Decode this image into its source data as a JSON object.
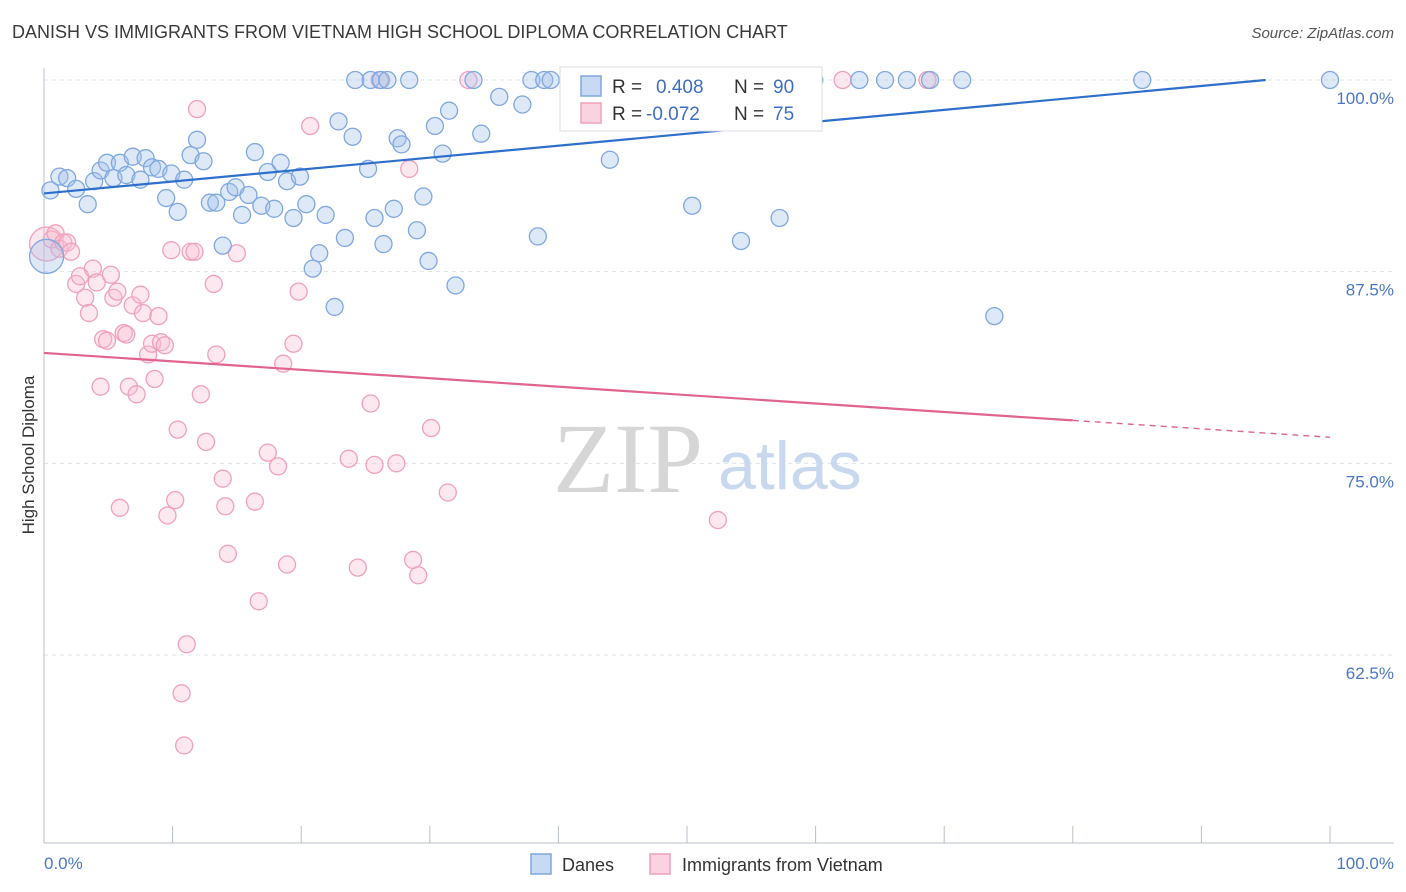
{
  "title": "DANISH VS IMMIGRANTS FROM VIETNAM HIGH SCHOOL DIPLOMA CORRELATION CHART",
  "source": "Source: ZipAtlas.com",
  "watermark": {
    "zip": "ZIP",
    "atlas": "atlas"
  },
  "colors": {
    "danes": "#7fa8e0",
    "danes_line": "#2f6fcc",
    "vietnam": "#f0a0bc",
    "vietnam_line": "#e0648c",
    "grid": "#dde3ec",
    "value_text": "#3e6fc4"
  },
  "stats": {
    "danes": {
      "r_label": "R =",
      "r_value": "0.408",
      "n_label": "N =",
      "n_value": "90"
    },
    "vietnam": {
      "r_label": "R =",
      "r_value": "-0.072",
      "n_label": "N =",
      "n_value": "75"
    }
  },
  "chart_data": {
    "type": "scatter",
    "title": "DANISH VS IMMIGRANTS FROM VIETNAM HIGH SCHOOL DIPLOMA CORRELATION CHART",
    "xlabel": "",
    "ylabel": "High School Diploma",
    "xlim": [
      0,
      100
    ],
    "ylim": [
      51,
      101.5
    ],
    "x_tick_labels": [
      "0.0%",
      "100.0%"
    ],
    "y_ticks": [
      62.5,
      75.0,
      87.5,
      100.0
    ],
    "y_tick_labels": [
      "62.5%",
      "75.0%",
      "87.5%",
      "100.0%"
    ],
    "grid": true,
    "legend_position": "bottom-center",
    "series": [
      {
        "name": "Danes",
        "trend": {
          "x": [
            0,
            95
          ],
          "y": [
            92.6,
            100.0
          ]
        },
        "points": [
          {
            "x": 0.2,
            "y": 88.5,
            "big": true
          },
          {
            "x": 0.5,
            "y": 92.8
          },
          {
            "x": 1.2,
            "y": 93.7
          },
          {
            "x": 1.8,
            "y": 93.6
          },
          {
            "x": 2.5,
            "y": 92.9
          },
          {
            "x": 3.4,
            "y": 91.9
          },
          {
            "x": 3.9,
            "y": 93.4
          },
          {
            "x": 4.4,
            "y": 94.1
          },
          {
            "x": 4.9,
            "y": 94.6
          },
          {
            "x": 5.4,
            "y": 93.6
          },
          {
            "x": 5.9,
            "y": 94.6
          },
          {
            "x": 6.4,
            "y": 93.8
          },
          {
            "x": 6.9,
            "y": 95.0
          },
          {
            "x": 7.5,
            "y": 93.5
          },
          {
            "x": 7.9,
            "y": 94.9
          },
          {
            "x": 8.4,
            "y": 94.3
          },
          {
            "x": 8.9,
            "y": 94.2
          },
          {
            "x": 9.5,
            "y": 92.3
          },
          {
            "x": 9.9,
            "y": 93.9
          },
          {
            "x": 10.4,
            "y": 91.4
          },
          {
            "x": 10.9,
            "y": 93.5
          },
          {
            "x": 11.4,
            "y": 95.1
          },
          {
            "x": 11.9,
            "y": 96.1
          },
          {
            "x": 12.4,
            "y": 94.7
          },
          {
            "x": 12.9,
            "y": 92.0
          },
          {
            "x": 13.4,
            "y": 92.0
          },
          {
            "x": 13.9,
            "y": 89.2
          },
          {
            "x": 14.4,
            "y": 92.7
          },
          {
            "x": 14.9,
            "y": 93.0
          },
          {
            "x": 15.4,
            "y": 91.2
          },
          {
            "x": 15.9,
            "y": 92.5
          },
          {
            "x": 16.4,
            "y": 95.3
          },
          {
            "x": 16.9,
            "y": 91.8
          },
          {
            "x": 17.4,
            "y": 94.0
          },
          {
            "x": 17.9,
            "y": 91.6
          },
          {
            "x": 18.4,
            "y": 94.6
          },
          {
            "x": 18.9,
            "y": 93.4
          },
          {
            "x": 19.4,
            "y": 91.0
          },
          {
            "x": 19.9,
            "y": 93.7
          },
          {
            "x": 20.4,
            "y": 91.9
          },
          {
            "x": 20.9,
            "y": 87.7
          },
          {
            "x": 21.4,
            "y": 88.7
          },
          {
            "x": 21.9,
            "y": 91.2
          },
          {
            "x": 22.6,
            "y": 85.2
          },
          {
            "x": 22.9,
            "y": 97.3
          },
          {
            "x": 23.4,
            "y": 89.7
          },
          {
            "x": 24.0,
            "y": 96.3
          },
          {
            "x": 24.2,
            "y": 100.0
          },
          {
            "x": 25.2,
            "y": 94.2
          },
          {
            "x": 25.4,
            "y": 100.0
          },
          {
            "x": 25.7,
            "y": 91.0
          },
          {
            "x": 26.2,
            "y": 100.0
          },
          {
            "x": 26.4,
            "y": 89.3
          },
          {
            "x": 26.7,
            "y": 100.0
          },
          {
            "x": 27.2,
            "y": 91.6
          },
          {
            "x": 27.5,
            "y": 96.2
          },
          {
            "x": 27.8,
            "y": 95.8
          },
          {
            "x": 28.4,
            "y": 100.0
          },
          {
            "x": 29.0,
            "y": 90.2
          },
          {
            "x": 29.5,
            "y": 92.4
          },
          {
            "x": 29.9,
            "y": 88.2
          },
          {
            "x": 30.4,
            "y": 97.0
          },
          {
            "x": 31.0,
            "y": 95.2
          },
          {
            "x": 31.5,
            "y": 98.0
          },
          {
            "x": 32.0,
            "y": 86.6
          },
          {
            "x": 33.4,
            "y": 100.0
          },
          {
            "x": 34.0,
            "y": 96.5
          },
          {
            "x": 35.4,
            "y": 98.9
          },
          {
            "x": 37.2,
            "y": 98.4
          },
          {
            "x": 37.9,
            "y": 100.0
          },
          {
            "x": 38.4,
            "y": 89.8
          },
          {
            "x": 38.9,
            "y": 100.0
          },
          {
            "x": 39.4,
            "y": 100.0
          },
          {
            "x": 41.4,
            "y": 100.0
          },
          {
            "x": 43.4,
            "y": 100.0
          },
          {
            "x": 44.0,
            "y": 94.8
          },
          {
            "x": 47.4,
            "y": 100.0
          },
          {
            "x": 54.4,
            "y": 100.0
          },
          {
            "x": 55.4,
            "y": 100.0
          },
          {
            "x": 59.4,
            "y": 100.0
          },
          {
            "x": 59.9,
            "y": 100.0
          },
          {
            "x": 63.4,
            "y": 100.0
          },
          {
            "x": 65.4,
            "y": 100.0
          },
          {
            "x": 67.1,
            "y": 100.0
          },
          {
            "x": 68.9,
            "y": 100.0
          },
          {
            "x": 71.4,
            "y": 100.0
          },
          {
            "x": 85.4,
            "y": 100.0
          },
          {
            "x": 100.0,
            "y": 100.0
          },
          {
            "x": 50.4,
            "y": 91.8
          },
          {
            "x": 54.2,
            "y": 89.5
          },
          {
            "x": 57.2,
            "y": 91.0
          },
          {
            "x": 73.9,
            "y": 84.6
          }
        ]
      },
      {
        "name": "Immigrants from Vietnam",
        "trend": {
          "x": [
            0,
            80
          ],
          "y": [
            82.2,
            77.8
          ]
        },
        "trend_dashed": {
          "x": [
            80,
            100
          ],
          "y": [
            77.8,
            76.7
          ]
        },
        "points": [
          {
            "x": 0.2,
            "y": 89.3,
            "big": true
          },
          {
            "x": 0.6,
            "y": 89.6
          },
          {
            "x": 0.9,
            "y": 90.0
          },
          {
            "x": 1.2,
            "y": 89.0
          },
          {
            "x": 1.5,
            "y": 89.4
          },
          {
            "x": 1.8,
            "y": 89.4
          },
          {
            "x": 2.1,
            "y": 88.8
          },
          {
            "x": 2.5,
            "y": 86.7
          },
          {
            "x": 2.8,
            "y": 87.2
          },
          {
            "x": 3.2,
            "y": 85.8
          },
          {
            "x": 3.5,
            "y": 84.8
          },
          {
            "x": 3.8,
            "y": 87.7
          },
          {
            "x": 4.1,
            "y": 86.8
          },
          {
            "x": 4.4,
            "y": 80.0
          },
          {
            "x": 4.6,
            "y": 83.1
          },
          {
            "x": 4.9,
            "y": 83.0
          },
          {
            "x": 5.2,
            "y": 87.3
          },
          {
            "x": 5.4,
            "y": 85.8
          },
          {
            "x": 5.7,
            "y": 86.2
          },
          {
            "x": 5.9,
            "y": 72.1
          },
          {
            "x": 6.2,
            "y": 83.5
          },
          {
            "x": 6.4,
            "y": 83.4
          },
          {
            "x": 6.6,
            "y": 80.0
          },
          {
            "x": 6.9,
            "y": 85.3
          },
          {
            "x": 7.2,
            "y": 79.5
          },
          {
            "x": 7.5,
            "y": 86.0
          },
          {
            "x": 7.7,
            "y": 84.8
          },
          {
            "x": 8.1,
            "y": 82.1
          },
          {
            "x": 8.4,
            "y": 82.8
          },
          {
            "x": 8.6,
            "y": 80.5
          },
          {
            "x": 8.9,
            "y": 84.6
          },
          {
            "x": 9.1,
            "y": 82.9
          },
          {
            "x": 9.4,
            "y": 82.7
          },
          {
            "x": 9.6,
            "y": 71.6
          },
          {
            "x": 9.9,
            "y": 88.9
          },
          {
            "x": 10.2,
            "y": 72.6
          },
          {
            "x": 10.4,
            "y": 77.2
          },
          {
            "x": 10.7,
            "y": 60.0
          },
          {
            "x": 10.9,
            "y": 56.6
          },
          {
            "x": 11.1,
            "y": 63.2
          },
          {
            "x": 11.4,
            "y": 88.8
          },
          {
            "x": 11.7,
            "y": 88.8
          },
          {
            "x": 11.9,
            "y": 98.1
          },
          {
            "x": 12.2,
            "y": 79.5
          },
          {
            "x": 12.6,
            "y": 76.4
          },
          {
            "x": 13.2,
            "y": 86.7
          },
          {
            "x": 13.4,
            "y": 82.1
          },
          {
            "x": 13.9,
            "y": 74.0
          },
          {
            "x": 14.1,
            "y": 72.2
          },
          {
            "x": 14.3,
            "y": 69.1
          },
          {
            "x": 15.0,
            "y": 88.7
          },
          {
            "x": 16.4,
            "y": 72.5
          },
          {
            "x": 16.7,
            "y": 66.0
          },
          {
            "x": 17.4,
            "y": 75.7
          },
          {
            "x": 18.2,
            "y": 74.8
          },
          {
            "x": 18.6,
            "y": 81.5
          },
          {
            "x": 18.9,
            "y": 68.4
          },
          {
            "x": 19.4,
            "y": 82.8
          },
          {
            "x": 19.8,
            "y": 86.2
          },
          {
            "x": 20.7,
            "y": 97.0
          },
          {
            "x": 23.7,
            "y": 75.3
          },
          {
            "x": 24.4,
            "y": 68.2
          },
          {
            "x": 25.4,
            "y": 78.9
          },
          {
            "x": 25.7,
            "y": 74.9
          },
          {
            "x": 26.1,
            "y": 100.0
          },
          {
            "x": 27.4,
            "y": 75.0
          },
          {
            "x": 28.4,
            "y": 94.2
          },
          {
            "x": 28.7,
            "y": 68.7
          },
          {
            "x": 29.1,
            "y": 67.7
          },
          {
            "x": 30.1,
            "y": 77.3
          },
          {
            "x": 31.4,
            "y": 73.1
          },
          {
            "x": 52.4,
            "y": 71.3
          },
          {
            "x": 62.1,
            "y": 100.0
          },
          {
            "x": 68.7,
            "y": 100.0
          },
          {
            "x": 33.0,
            "y": 100.0
          }
        ]
      }
    ]
  },
  "legend": [
    {
      "key": "danes",
      "label": "Danes"
    },
    {
      "key": "vietnam",
      "label": "Immigrants from Vietnam"
    }
  ]
}
